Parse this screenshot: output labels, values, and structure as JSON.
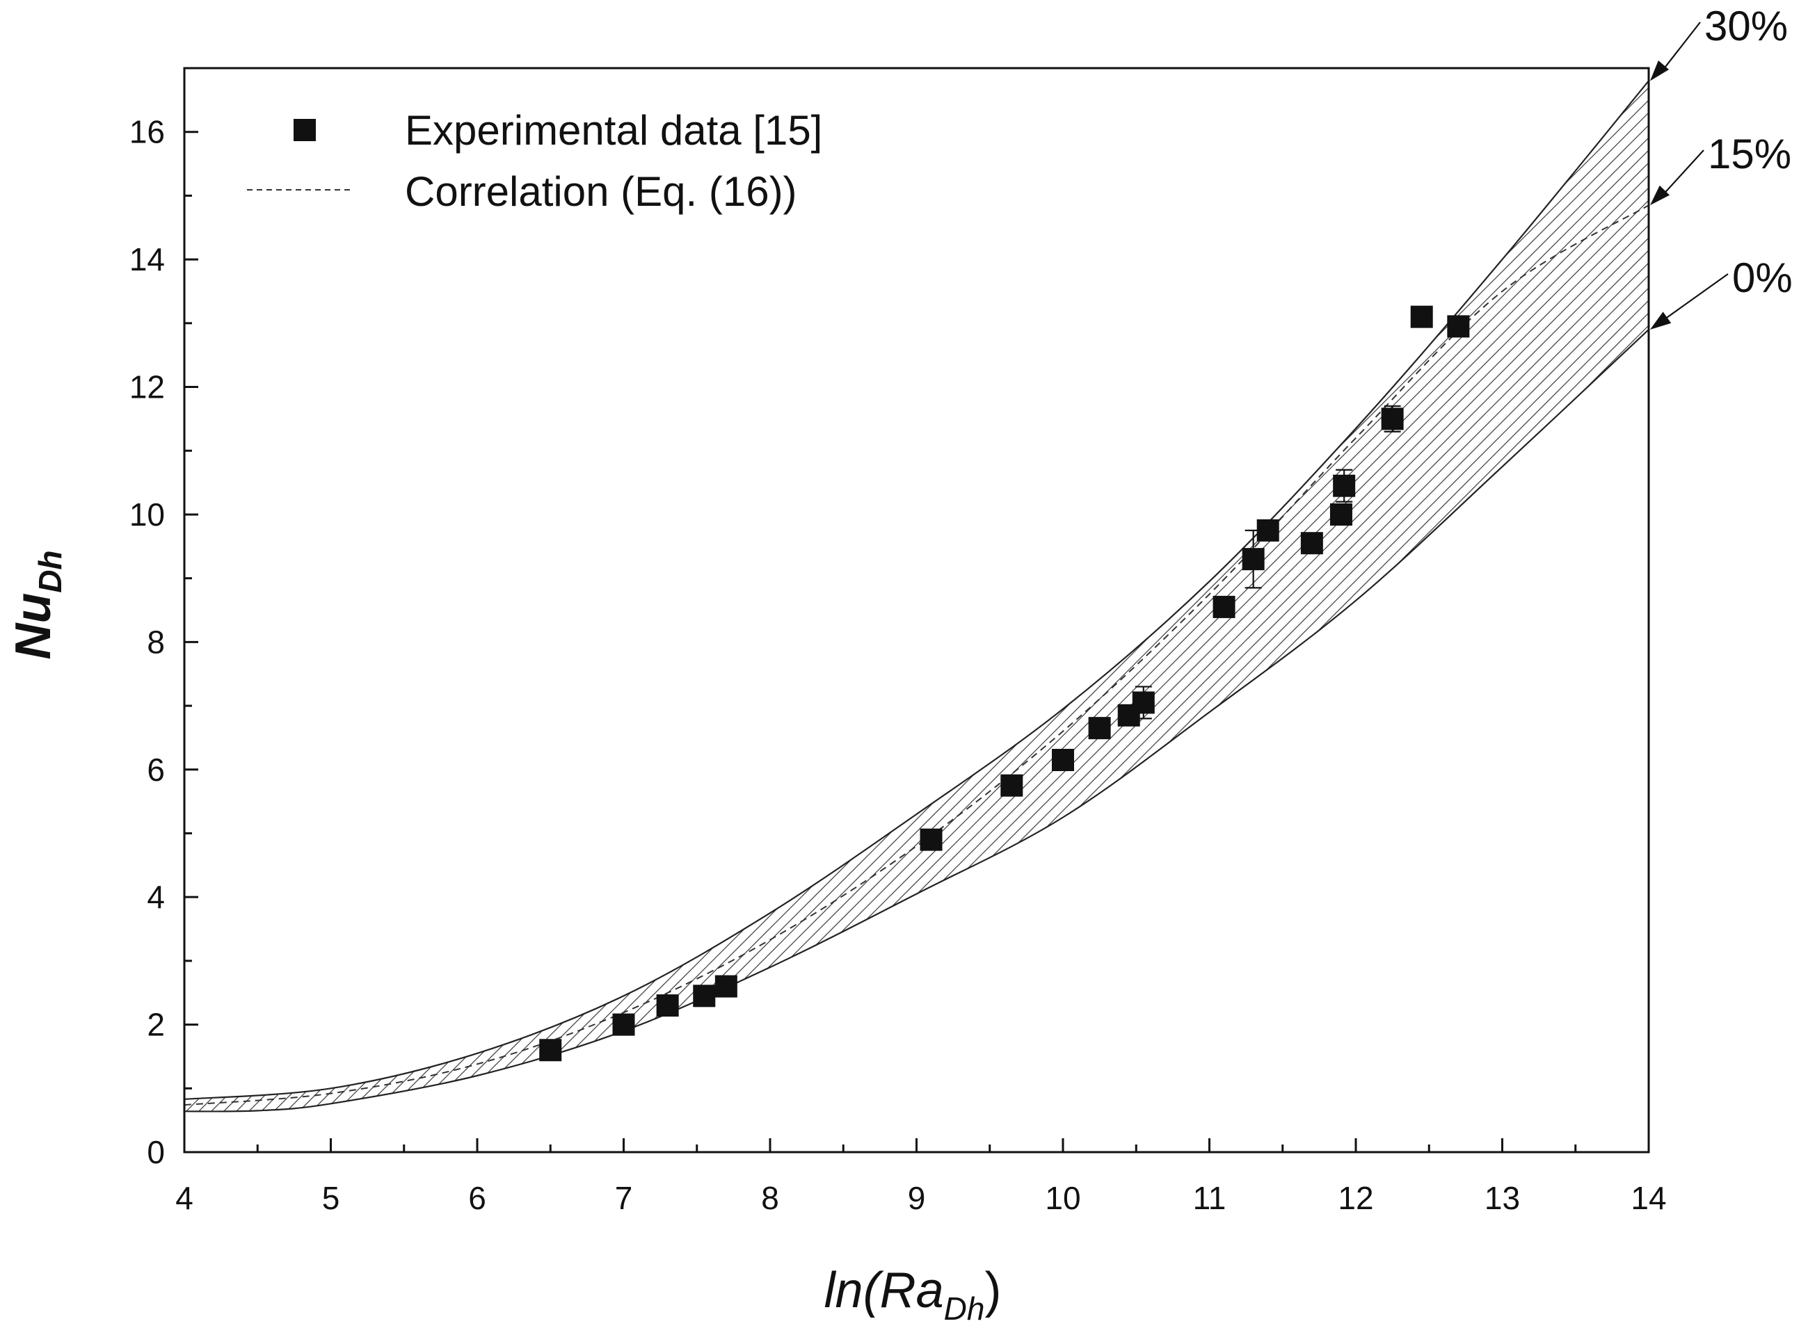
{
  "chart_data": {
    "type": "scatter",
    "title": "",
    "xlabel": {
      "main": "ln(Ra",
      "sub": "Dh",
      "close": ")"
    },
    "ylabel": {
      "main": "Nu",
      "sub": "Dh"
    },
    "xlim": [
      4,
      14
    ],
    "ylim": [
      0,
      17
    ],
    "x_ticks": [
      4,
      5,
      6,
      7,
      8,
      9,
      10,
      11,
      12,
      13,
      14
    ],
    "y_ticks": [
      0,
      2,
      4,
      6,
      8,
      10,
      12,
      14,
      16
    ],
    "grid": false,
    "legend": {
      "position": "top-left",
      "items": [
        {
          "label": "Experimental data [15]",
          "marker": "filled-square"
        },
        {
          "label": "Correlation (Eq. (16))",
          "marker": "dashed-line"
        }
      ]
    },
    "series": [
      {
        "name": "Experimental data [15]",
        "kind": "points",
        "points": [
          {
            "x": 6.5,
            "y": 1.6,
            "err": 0.05
          },
          {
            "x": 7.0,
            "y": 2.0,
            "err": 0.06
          },
          {
            "x": 7.3,
            "y": 2.3,
            "err": 0.06
          },
          {
            "x": 7.55,
            "y": 2.45,
            "err": 0.06
          },
          {
            "x": 7.7,
            "y": 2.6,
            "err": 0.06
          },
          {
            "x": 9.1,
            "y": 4.9,
            "err": 0.15
          },
          {
            "x": 9.65,
            "y": 5.75,
            "err": 0.1
          },
          {
            "x": 10.0,
            "y": 6.15,
            "err": 0.1
          },
          {
            "x": 10.25,
            "y": 6.65,
            "err": 0.1
          },
          {
            "x": 10.45,
            "y": 6.85,
            "err": 0.15
          },
          {
            "x": 10.55,
            "y": 7.05,
            "err": 0.25
          },
          {
            "x": 11.1,
            "y": 8.55,
            "err": 0.15
          },
          {
            "x": 11.3,
            "y": 9.3,
            "err": 0.45
          },
          {
            "x": 11.4,
            "y": 9.75,
            "err": 0.05
          },
          {
            "x": 11.7,
            "y": 9.55,
            "err": 0.1
          },
          {
            "x": 11.9,
            "y": 10.0,
            "err": 0.1
          },
          {
            "x": 11.92,
            "y": 10.45,
            "err": 0.25
          },
          {
            "x": 12.25,
            "y": 11.5,
            "err": 0.2
          },
          {
            "x": 12.45,
            "y": 13.1,
            "err": 0.05
          },
          {
            "x": 12.7,
            "y": 12.95,
            "err": 0.05
          }
        ]
      },
      {
        "name": "Correlation (Eq. (16))",
        "kind": "curve",
        "style": "dashed",
        "x": [
          4.0,
          5.0,
          6.0,
          7.0,
          8.0,
          9.0,
          10.0,
          11.0,
          12.0,
          13.0,
          14.0
        ],
        "y": [
          0.74,
          0.92,
          1.38,
          2.19,
          3.33,
          4.8,
          6.6,
          8.75,
          11.2,
          13.5,
          14.85
        ]
      },
      {
        "name": "0% bound",
        "kind": "curve",
        "style": "solid",
        "x": [
          4.0,
          4.5,
          5.0,
          6.0,
          7.0,
          8.0,
          9.0,
          10.0,
          11.0,
          12.0,
          13.0,
          14.0
        ],
        "y": [
          0.64,
          0.65,
          0.76,
          1.2,
          1.9,
          2.9,
          4.05,
          5.25,
          6.9,
          8.65,
          10.75,
          12.9
        ]
      },
      {
        "name": "30% bound",
        "kind": "curve",
        "style": "solid",
        "x": [
          4.0,
          5.0,
          6.0,
          7.0,
          8.0,
          9.0,
          10.0,
          11.0,
          12.0,
          13.0,
          14.0
        ],
        "y": [
          0.83,
          1.0,
          1.55,
          2.45,
          3.75,
          5.3,
          6.95,
          8.95,
          11.35,
          14.0,
          16.8
        ]
      }
    ],
    "bound_labels": [
      {
        "label": "30%",
        "y": 16.8
      },
      {
        "label": "15%",
        "y": 14.85
      },
      {
        "label": "0%",
        "y": 12.9
      }
    ]
  }
}
